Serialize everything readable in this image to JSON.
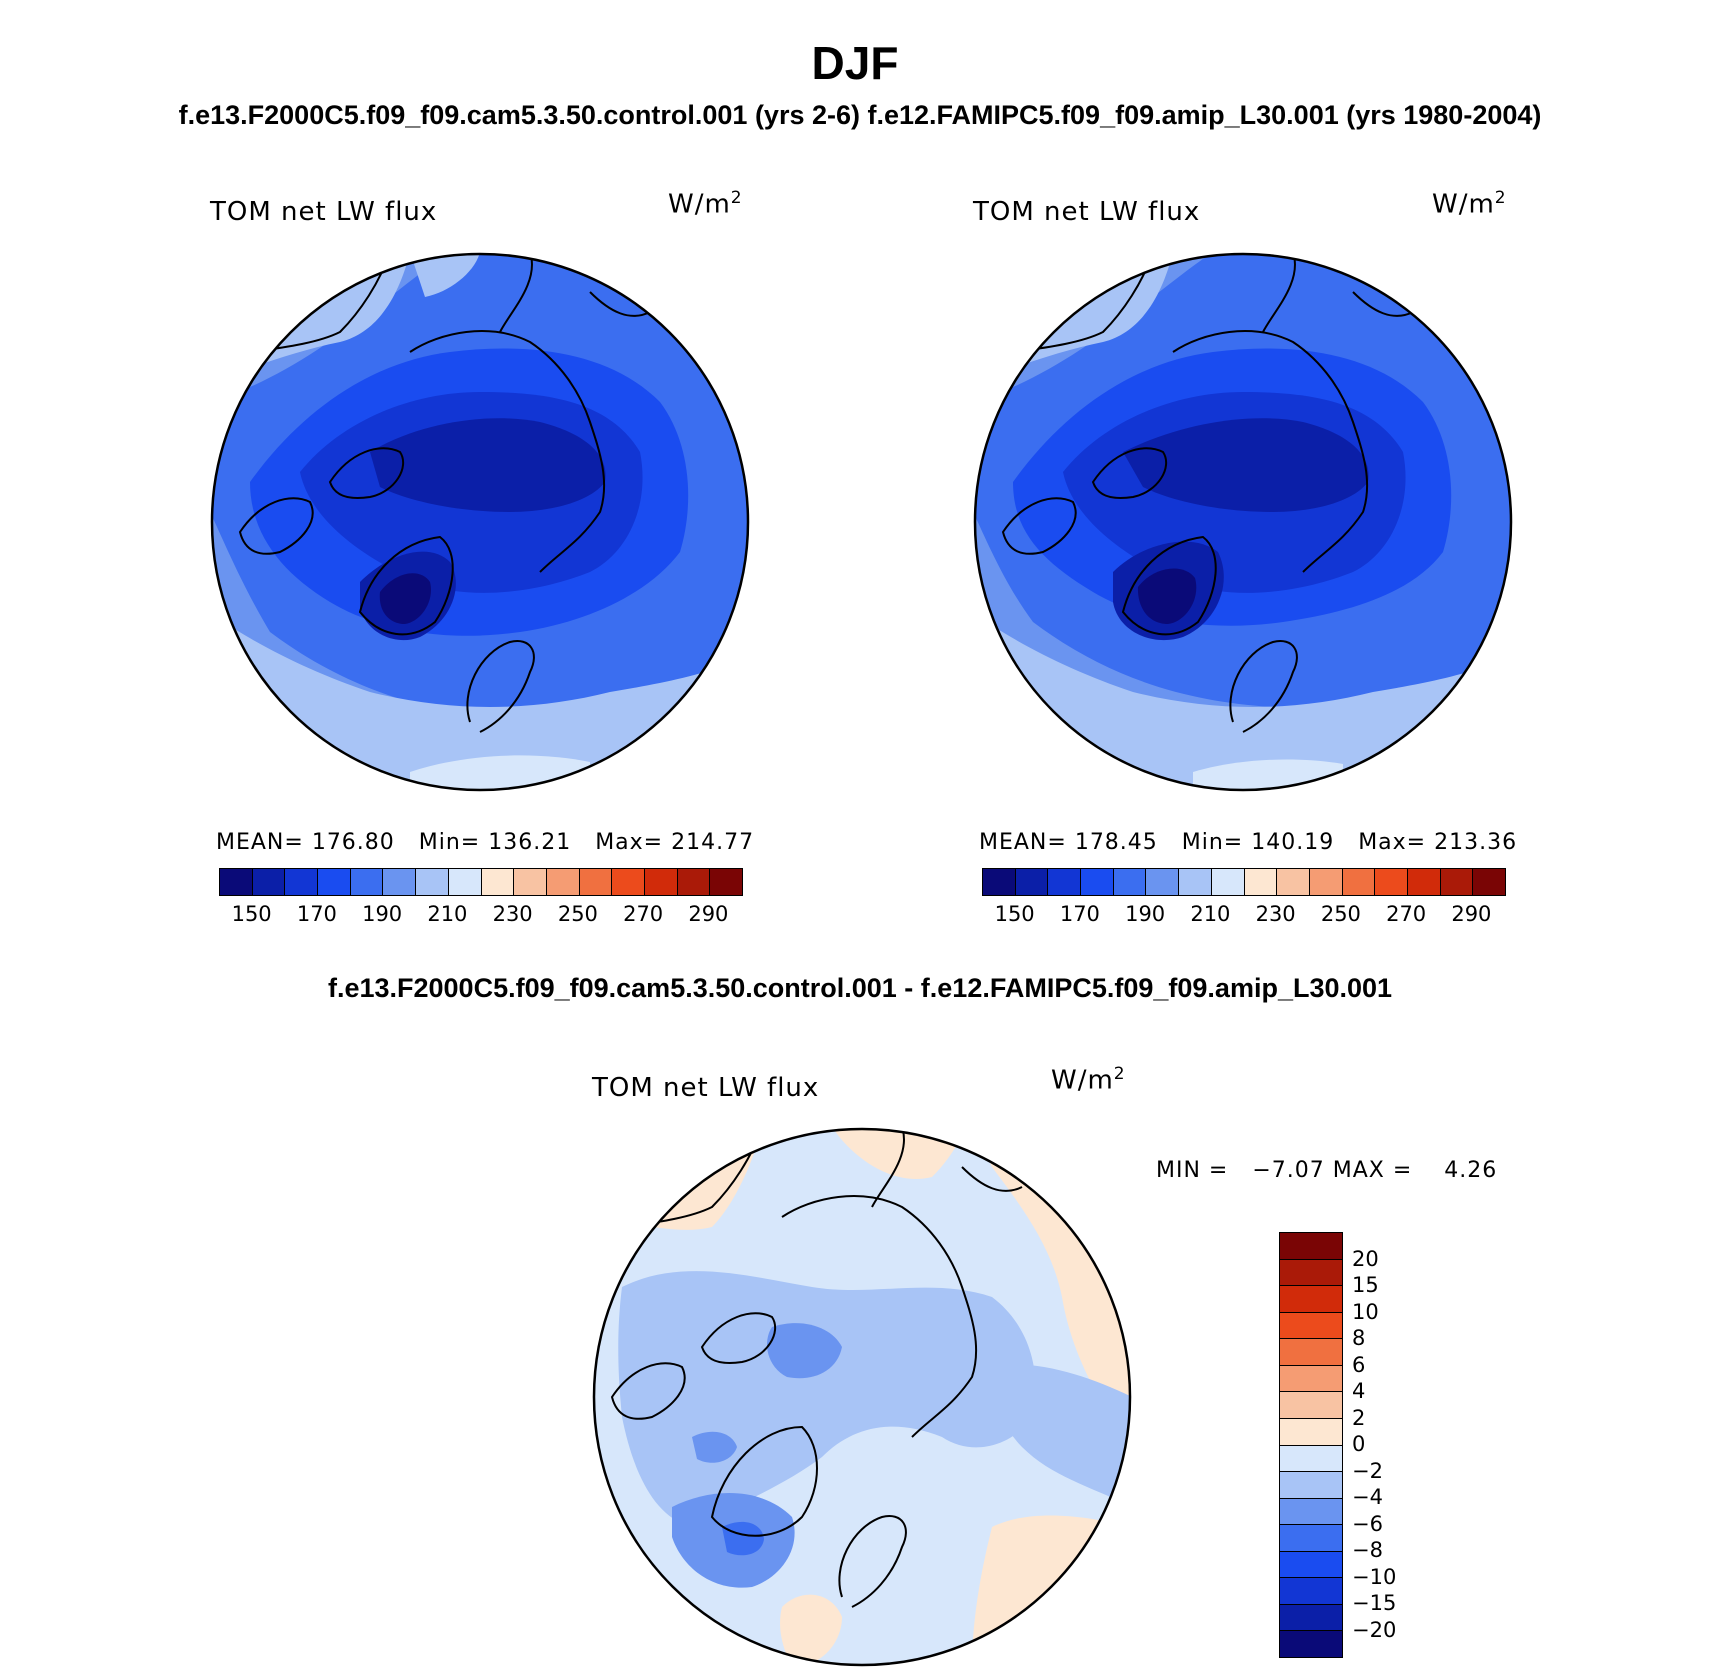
{
  "figure": {
    "title": "DJF",
    "case_title": "f.e13.F2000C5.f09_f09.cam5.3.50.control.001 (yrs 2-6)  f.e12.FAMIPC5.f09_f09.amip_L30.001 (yrs 1980-2004)",
    "diff_title": "f.e13.F2000C5.f09_f09.cam5.3.50.control.001 - f.e12.FAMIPC5.f09_f09.amip_L30.001"
  },
  "panels": [
    {
      "id": "test",
      "title": "TOM net LW flux",
      "units": "W/m",
      "units_sup": "2",
      "stats": "MEAN= 176.80   Min= 136.21   Max= 214.77",
      "mean": 176.8,
      "min": 136.21,
      "max": 214.77
    },
    {
      "id": "control",
      "title": "TOM net LW flux",
      "units": "W/m",
      "units_sup": "2",
      "stats": "MEAN= 178.45   Min= 140.19   Max= 213.36",
      "mean": 178.45,
      "min": 140.19,
      "max": 213.36
    },
    {
      "id": "difference",
      "title": "TOM net LW flux",
      "units": "W/m",
      "units_sup": "2",
      "stats": "MIN =   −7.07 MAX =    4.26",
      "min": -7.07,
      "max": 4.26
    }
  ],
  "colorbar_main": {
    "tick_labels": [
      "150",
      "170",
      "190",
      "210",
      "230",
      "250",
      "270",
      "290"
    ],
    "colors": [
      "#0a0a78",
      "#0b1fa8",
      "#1236d4",
      "#1a4cf0",
      "#3b6ef0",
      "#6a94f0",
      "#a8c4f6",
      "#d7e7fb",
      "#fde7d2",
      "#f8c3a3",
      "#f59c73",
      "#f07040",
      "#ec4b1c",
      "#d12b0a",
      "#aa1a08",
      "#7a0505"
    ]
  },
  "colorbar_diff": {
    "tick_labels": [
      "20",
      "15",
      "10",
      "8",
      "6",
      "4",
      "2",
      "0",
      "−2",
      "−4",
      "−6",
      "−8",
      "−10",
      "−15",
      "−20"
    ],
    "colors": [
      "#7a0505",
      "#aa1a08",
      "#d12b0a",
      "#ec4b1c",
      "#f07040",
      "#f59c73",
      "#f8c3a3",
      "#fde7d2",
      "#d7e7fb",
      "#a8c4f6",
      "#6a94f0",
      "#3b6ef0",
      "#1a4cf0",
      "#1236d4",
      "#0b1fa8",
      "#0a0a78"
    ]
  }
}
